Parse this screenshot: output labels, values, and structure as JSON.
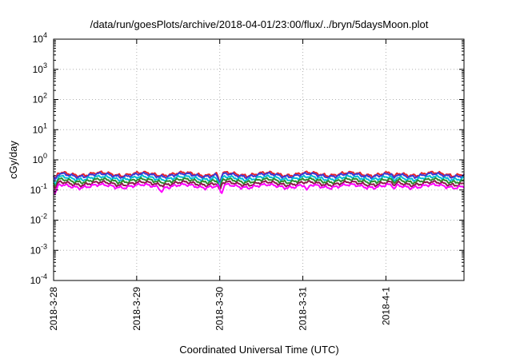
{
  "chart_data": {
    "type": "line",
    "title": "/data/run/goesPlots/archive/2018-04-01/23:00/flux/../bryn/5daysMoon.plot",
    "xlabel": "Coordinated Universal Time (UTC)",
    "ylabel": "cGy/day",
    "yscale": "log",
    "ylim": [
      0.0001,
      10000
    ],
    "y_ticks": [
      {
        "base": "10",
        "exp": "4",
        "value": 10000
      },
      {
        "base": "10",
        "exp": "3",
        "value": 1000
      },
      {
        "base": "10",
        "exp": "2",
        "value": 100
      },
      {
        "base": "10",
        "exp": "1",
        "value": 10
      },
      {
        "base": "10",
        "exp": "0",
        "value": 1
      },
      {
        "base": "10",
        "exp": "-1",
        "value": 0.1
      },
      {
        "base": "10",
        "exp": "-2",
        "value": 0.01
      },
      {
        "base": "10",
        "exp": "-3",
        "value": 0.001
      },
      {
        "base": "10",
        "exp": "-4",
        "value": 0.0001
      }
    ],
    "xlim_days": [
      0,
      4.94
    ],
    "x_ticks": [
      {
        "label": "2018-3-28",
        "day": 0
      },
      {
        "label": "2018-3-29",
        "day": 1
      },
      {
        "label": "2018-3-30",
        "day": 2
      },
      {
        "label": "2018-3-31",
        "day": 3
      },
      {
        "label": "2018-4-1",
        "day": 4
      }
    ],
    "grid": true,
    "legend": "none",
    "series": [
      {
        "color": "#e8202a",
        "base": 0.34,
        "dips": [
          [
            0.02,
            0.24
          ],
          [
            2.0,
            0.19
          ],
          [
            4.1,
            0.27
          ]
        ]
      },
      {
        "color": "#3b3bd6",
        "base": 0.31,
        "dips": [
          [
            0.02,
            0.22
          ],
          [
            2.0,
            0.17
          ],
          [
            4.1,
            0.25
          ]
        ]
      },
      {
        "color": "#00bcd4",
        "base": 0.25,
        "dips": [
          [
            0.02,
            0.15
          ],
          [
            2.0,
            0.13
          ],
          [
            4.1,
            0.2
          ]
        ]
      },
      {
        "color": "#2e8b2e",
        "base": 0.205,
        "dips": [
          [
            0.02,
            0.13
          ],
          [
            2.0,
            0.12
          ],
          [
            4.1,
            0.17
          ]
        ]
      },
      {
        "color": "#8b1a4a",
        "base": 0.165,
        "dips": [
          [
            0.02,
            0.11
          ],
          [
            2.0,
            0.1
          ],
          [
            4.1,
            0.14
          ]
        ]
      },
      {
        "color": "#ff00ff",
        "base": 0.135,
        "dips": [
          [
            0.02,
            0.075
          ],
          [
            1.3,
            0.085
          ],
          [
            2.02,
            0.075
          ],
          [
            3.05,
            0.1
          ],
          [
            4.1,
            0.11
          ]
        ]
      }
    ]
  }
}
